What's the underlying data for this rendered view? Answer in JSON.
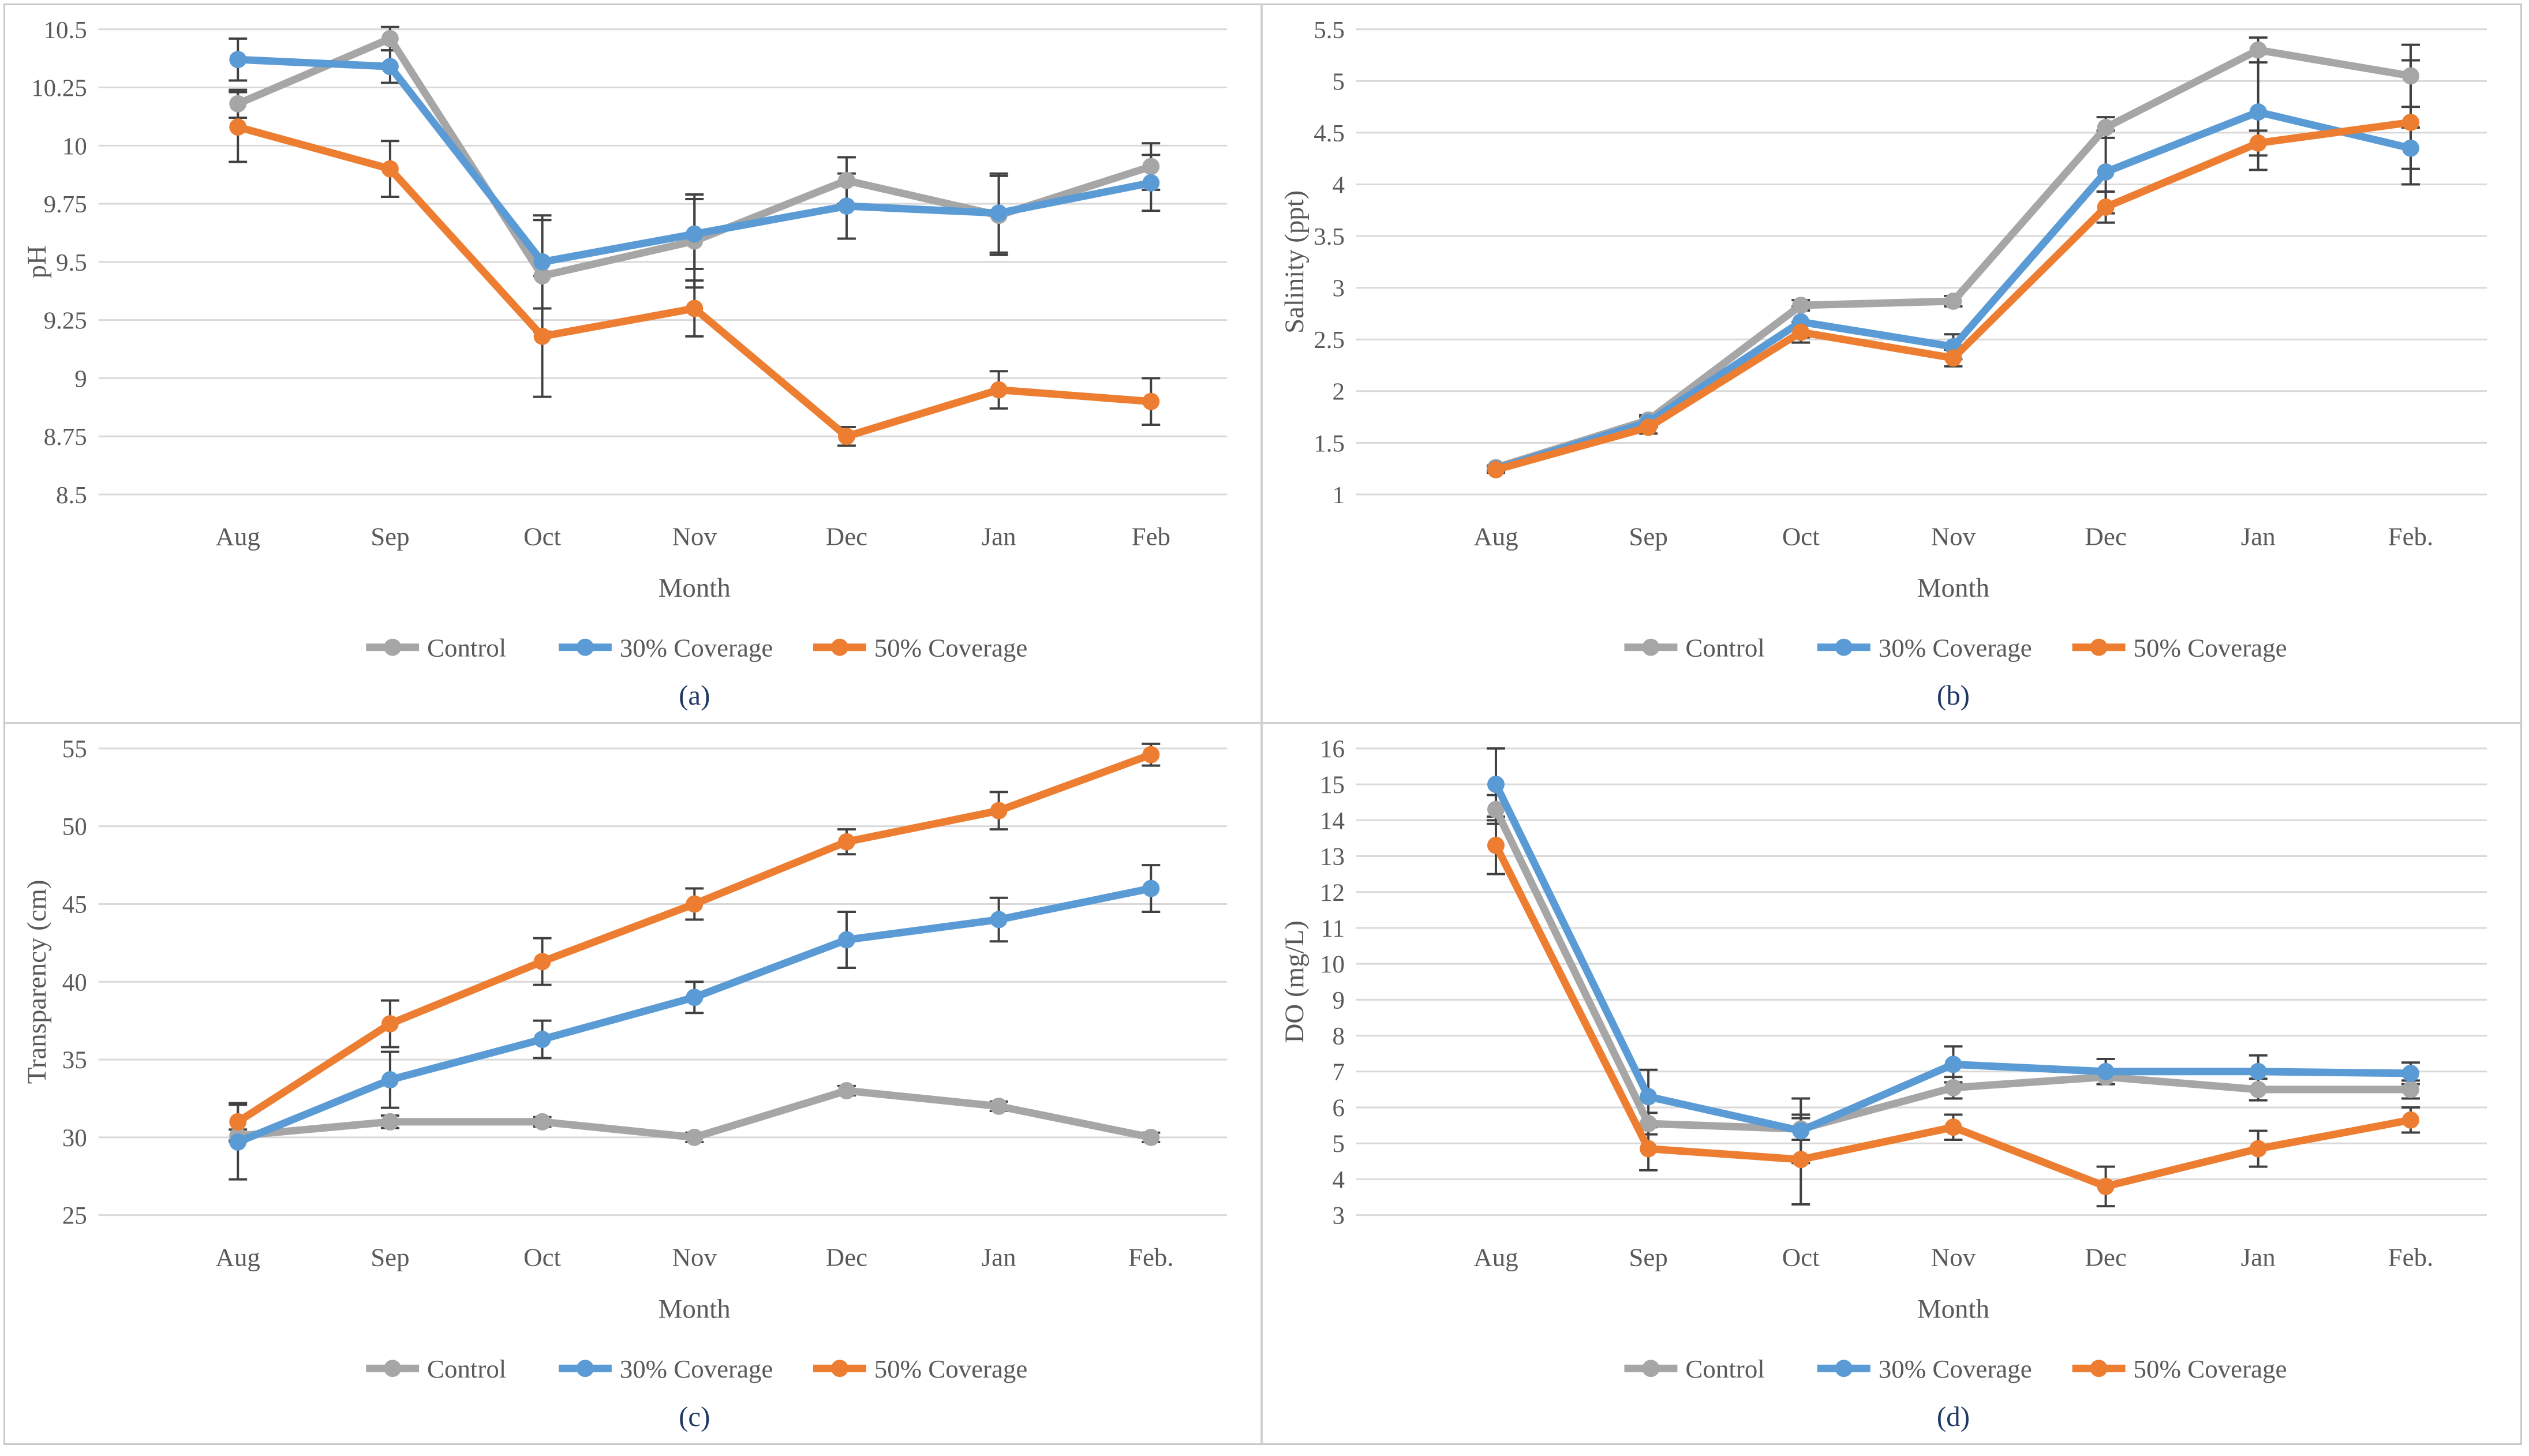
{
  "colors": {
    "control": "#a6a6a6",
    "coverage30": "#5b9bd5",
    "coverage50": "#ed7d31",
    "grid": "#d9d9d9",
    "axis_text": "#595959",
    "error_bar": "#404040",
    "caption": "#1f3864"
  },
  "legend_labels": [
    "Control",
    "30% Coverage",
    "50% Coverage"
  ],
  "chart_data": [
    {
      "type": "line",
      "caption": "(a)",
      "ylabel": "pH",
      "xlabel": "Month",
      "y_min": 8.5,
      "y_max": 10.5,
      "y_ticks": [
        "8.5",
        "8.75",
        "9",
        "9.25",
        "9.5",
        "9.75",
        "10",
        "10.25",
        "10.5"
      ],
      "categories": [
        "Aug",
        "Sep",
        "Oct",
        "Nov",
        "Dec",
        "Jan",
        "Feb"
      ],
      "grid": true,
      "legend_position": "bottom",
      "series": [
        {
          "name": "Control",
          "color_key": "control",
          "values": [
            10.18,
            10.46,
            9.44,
            9.59,
            9.85,
            9.7,
            9.91
          ],
          "err": [
            0.06,
            0.05,
            0.24,
            0.2,
            0.1,
            0.17,
            0.1
          ]
        },
        {
          "name": "30% Coverage",
          "color_key": "coverage30",
          "values": [
            10.37,
            10.34,
            9.5,
            9.62,
            9.74,
            9.71,
            9.84
          ],
          "err": [
            0.09,
            0.07,
            0.2,
            0.15,
            0.14,
            0.17,
            0.12
          ]
        },
        {
          "name": "50% Coverage",
          "color_key": "coverage50",
          "values": [
            10.08,
            9.9,
            9.18,
            9.3,
            8.75,
            8.95,
            8.9
          ],
          "err": [
            0.15,
            0.12,
            0.26,
            0.12,
            0.04,
            0.08,
            0.1
          ]
        }
      ]
    },
    {
      "type": "line",
      "caption": "(b)",
      "ylabel": "Salinity (ppt)",
      "xlabel": "Month",
      "y_min": 1,
      "y_max": 5.5,
      "y_ticks": [
        "1",
        "1.5",
        "2",
        "2.5",
        "3",
        "3.5",
        "4",
        "4.5",
        "5",
        "5.5"
      ],
      "categories": [
        "Aug",
        "Sep",
        "Oct",
        "Nov",
        "Dec",
        "Jan",
        "Feb."
      ],
      "grid": true,
      "legend_position": "bottom",
      "series": [
        {
          "name": "Control",
          "color_key": "control",
          "values": [
            1.26,
            1.72,
            2.83,
            2.87,
            4.55,
            5.3,
            5.05
          ],
          "err": [
            0.02,
            0.05,
            0.05,
            0.05,
            0.1,
            0.12,
            0.3
          ]
        },
        {
          "name": "30% Coverage",
          "color_key": "coverage30",
          "values": [
            1.25,
            1.7,
            2.67,
            2.43,
            4.12,
            4.7,
            4.35
          ],
          "err": [
            0.02,
            0.05,
            0.15,
            0.12,
            0.4,
            0.56,
            0.2
          ]
        },
        {
          "name": "50% Coverage",
          "color_key": "coverage50",
          "values": [
            1.24,
            1.65,
            2.57,
            2.32,
            3.78,
            4.4,
            4.6
          ],
          "err": [
            0.03,
            0.06,
            0.1,
            0.08,
            0.15,
            0.12,
            0.6
          ]
        }
      ]
    },
    {
      "type": "line",
      "caption": "(c)",
      "ylabel": "Transparency (cm)",
      "xlabel": "Month",
      "y_min": 25,
      "y_max": 55,
      "y_ticks": [
        "25",
        "30",
        "35",
        "40",
        "45",
        "50",
        "55"
      ],
      "categories": [
        "Aug",
        "Sep",
        "Oct",
        "Nov",
        "Dec",
        "Jan",
        "Feb."
      ],
      "grid": true,
      "legend_position": "bottom",
      "series": [
        {
          "name": "Control",
          "color_key": "control",
          "values": [
            30.1,
            31,
            31,
            30,
            33,
            32,
            30
          ],
          "err": [
            0.4,
            0.4,
            0.3,
            0.3,
            0.3,
            0.3,
            0.3
          ]
        },
        {
          "name": "30% Coverage",
          "color_key": "coverage30",
          "values": [
            29.7,
            33.7,
            36.3,
            39,
            42.7,
            44,
            46
          ],
          "err": [
            2.4,
            1.8,
            1.2,
            1.0,
            1.8,
            1.4,
            1.5
          ]
        },
        {
          "name": "50% Coverage",
          "color_key": "coverage50",
          "values": [
            31,
            37.3,
            41.3,
            45,
            49,
            51,
            54.6
          ],
          "err": [
            1.2,
            1.5,
            1.5,
            1.0,
            0.8,
            1.2,
            0.7
          ]
        }
      ]
    },
    {
      "type": "line",
      "caption": "(d)",
      "ylabel": "DO (mg/L)",
      "xlabel": "Month",
      "y_min": 3,
      "y_max": 16,
      "y_ticks": [
        "3",
        "4",
        "5",
        "6",
        "7",
        "8",
        "9",
        "10",
        "11",
        "12",
        "13",
        "14",
        "15",
        "16"
      ],
      "categories": [
        "Aug",
        "Sep",
        "Oct",
        "Nov",
        "Dec",
        "Jan",
        "Feb."
      ],
      "grid": true,
      "legend_position": "bottom",
      "series": [
        {
          "name": "Control",
          "color_key": "control",
          "values": [
            14.3,
            5.55,
            5.4,
            6.55,
            6.85,
            6.5,
            6.5
          ],
          "err": [
            0.4,
            0.3,
            0.3,
            0.3,
            0.2,
            0.3,
            0.25
          ]
        },
        {
          "name": "30% Coverage",
          "color_key": "coverage30",
          "values": [
            15.0,
            6.3,
            5.35,
            7.2,
            7.0,
            7.0,
            6.95
          ],
          "err": [
            1.0,
            0.75,
            0.9,
            0.5,
            0.35,
            0.45,
            0.3
          ]
        },
        {
          "name": "50% Coverage",
          "color_key": "coverage50",
          "values": [
            13.3,
            4.85,
            4.55,
            5.45,
            3.8,
            4.85,
            5.65
          ],
          "err": [
            0.8,
            0.6,
            1.25,
            0.35,
            0.55,
            0.5,
            0.35
          ]
        }
      ]
    }
  ]
}
